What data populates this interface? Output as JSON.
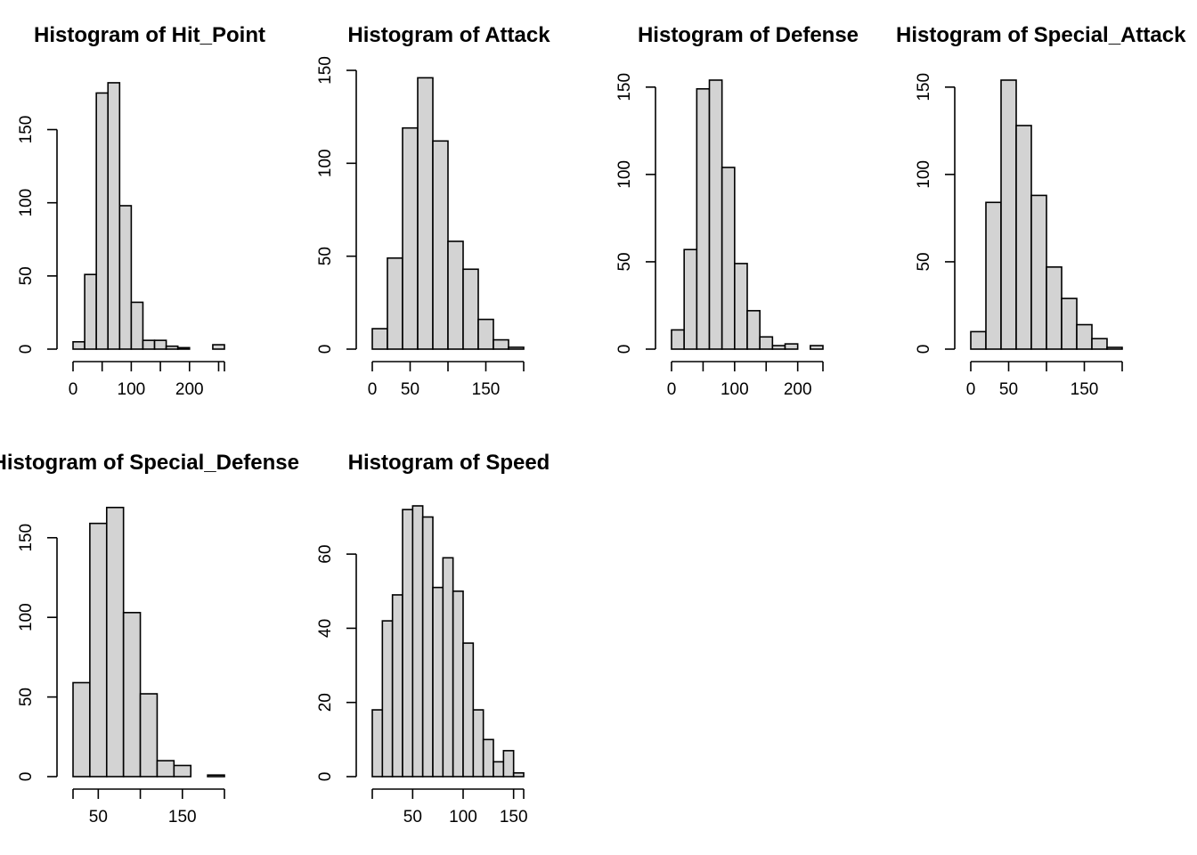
{
  "chart_data": [
    {
      "type": "bar",
      "title": "Histogram of Hit_Point",
      "bin_edges": [
        0,
        20,
        40,
        60,
        80,
        100,
        120,
        140,
        160,
        180,
        200,
        220,
        240,
        260
      ],
      "values": [
        5,
        51,
        175,
        182,
        98,
        32,
        6,
        6,
        2,
        1,
        0,
        0,
        3
      ],
      "xlim": [
        0,
        260
      ],
      "xticks": [
        0,
        100,
        200
      ],
      "ylim": [
        0,
        185
      ],
      "yticks": [
        0,
        50,
        100,
        150
      ]
    },
    {
      "type": "bar",
      "title": "Histogram of Attack",
      "bin_edges": [
        0,
        20,
        40,
        60,
        80,
        100,
        120,
        140,
        160,
        180,
        200
      ],
      "values": [
        11,
        49,
        119,
        146,
        112,
        58,
        43,
        16,
        5,
        1
      ],
      "xlim": [
        0,
        200
      ],
      "xticks": [
        0,
        50,
        150
      ],
      "ylim": [
        0,
        150
      ],
      "yticks": [
        0,
        50,
        100,
        150
      ]
    },
    {
      "type": "bar",
      "title": "Histogram of Defense",
      "bin_edges": [
        0,
        20,
        40,
        60,
        80,
        100,
        120,
        140,
        160,
        180,
        200,
        220,
        240
      ],
      "values": [
        11,
        57,
        149,
        154,
        104,
        49,
        22,
        7,
        2,
        3,
        0,
        2
      ],
      "xlim": [
        0,
        240
      ],
      "xticks": [
        0,
        100,
        200
      ],
      "ylim": [
        0,
        155
      ],
      "yticks": [
        0,
        50,
        100,
        150
      ]
    },
    {
      "type": "bar",
      "title": "Histogram of Special_Attack",
      "bin_edges": [
        0,
        20,
        40,
        60,
        80,
        100,
        120,
        140,
        160,
        180,
        200
      ],
      "values": [
        10,
        84,
        154,
        128,
        88,
        47,
        29,
        14,
        6,
        1
      ],
      "xlim": [
        0,
        200
      ],
      "xticks": [
        0,
        50,
        150
      ],
      "ylim": [
        0,
        155
      ],
      "yticks": [
        0,
        50,
        100,
        150
      ]
    },
    {
      "type": "bar",
      "title": "Histogram of Special_Defense",
      "bin_edges": [
        20,
        40,
        60,
        80,
        100,
        120,
        140,
        160,
        180,
        200
      ],
      "values": [
        59,
        159,
        169,
        103,
        52,
        10,
        7,
        0,
        1
      ],
      "xlim": [
        20,
        200
      ],
      "xticks": [
        50,
        150
      ],
      "ylim": [
        0,
        170
      ],
      "yticks": [
        0,
        50,
        100,
        150
      ]
    },
    {
      "type": "bar",
      "title": "Histogram of Speed",
      "bin_edges": [
        10,
        20,
        30,
        40,
        50,
        60,
        70,
        80,
        90,
        100,
        110,
        120,
        130,
        140,
        150,
        160
      ],
      "values": [
        18,
        42,
        49,
        72,
        73,
        70,
        51,
        59,
        50,
        36,
        18,
        10,
        4,
        7,
        1
      ],
      "xlim": [
        10,
        160
      ],
      "xticks": [
        50,
        100,
        150
      ],
      "ylim": [
        0,
        73
      ],
      "yticks": [
        0,
        20,
        40,
        60
      ]
    }
  ]
}
